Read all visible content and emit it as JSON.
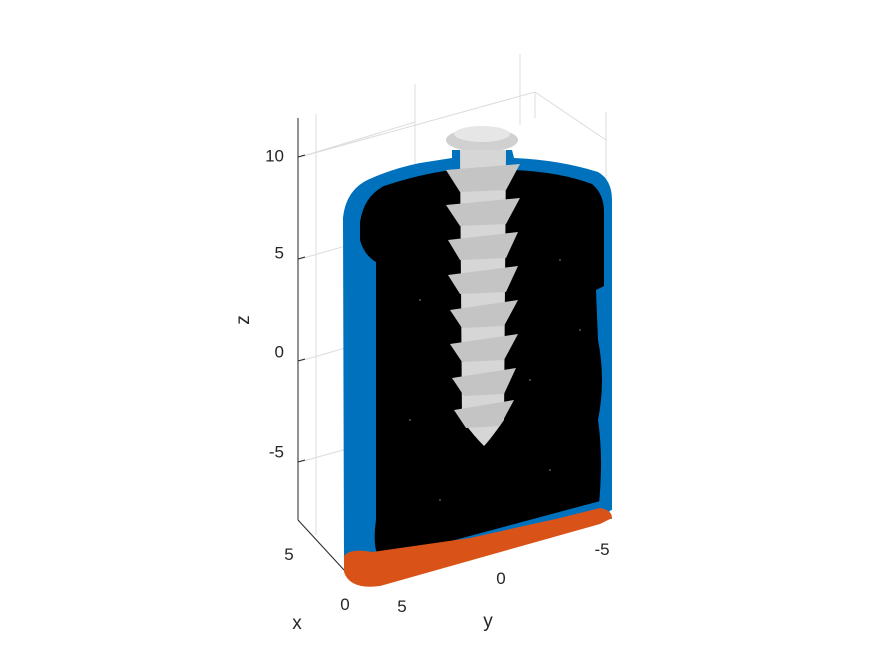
{
  "chart_data": {
    "type": "scatter",
    "projection": "3d",
    "title": "",
    "xlabel": "x",
    "ylabel": "y",
    "zlabel": "z",
    "x_ticks": [
      "0",
      "5"
    ],
    "y_ticks": [
      "5",
      "0",
      "-5"
    ],
    "z_ticks": [
      "10",
      "5",
      "0",
      "-5"
    ],
    "xlim": [
      -1,
      7
    ],
    "ylim": [
      -7,
      7
    ],
    "zlim": [
      -8.5,
      11.5
    ],
    "grid": true,
    "legend": "none",
    "series": [
      {
        "role": "outer shell",
        "color": "#0072BD"
      },
      {
        "role": "interior",
        "color": "#000000"
      },
      {
        "role": "bottom boundary",
        "color": "#D95319"
      },
      {
        "role": "screw",
        "color": "#D9D9D9",
        "z_range": [
          -4.5,
          11
        ]
      }
    ]
  }
}
